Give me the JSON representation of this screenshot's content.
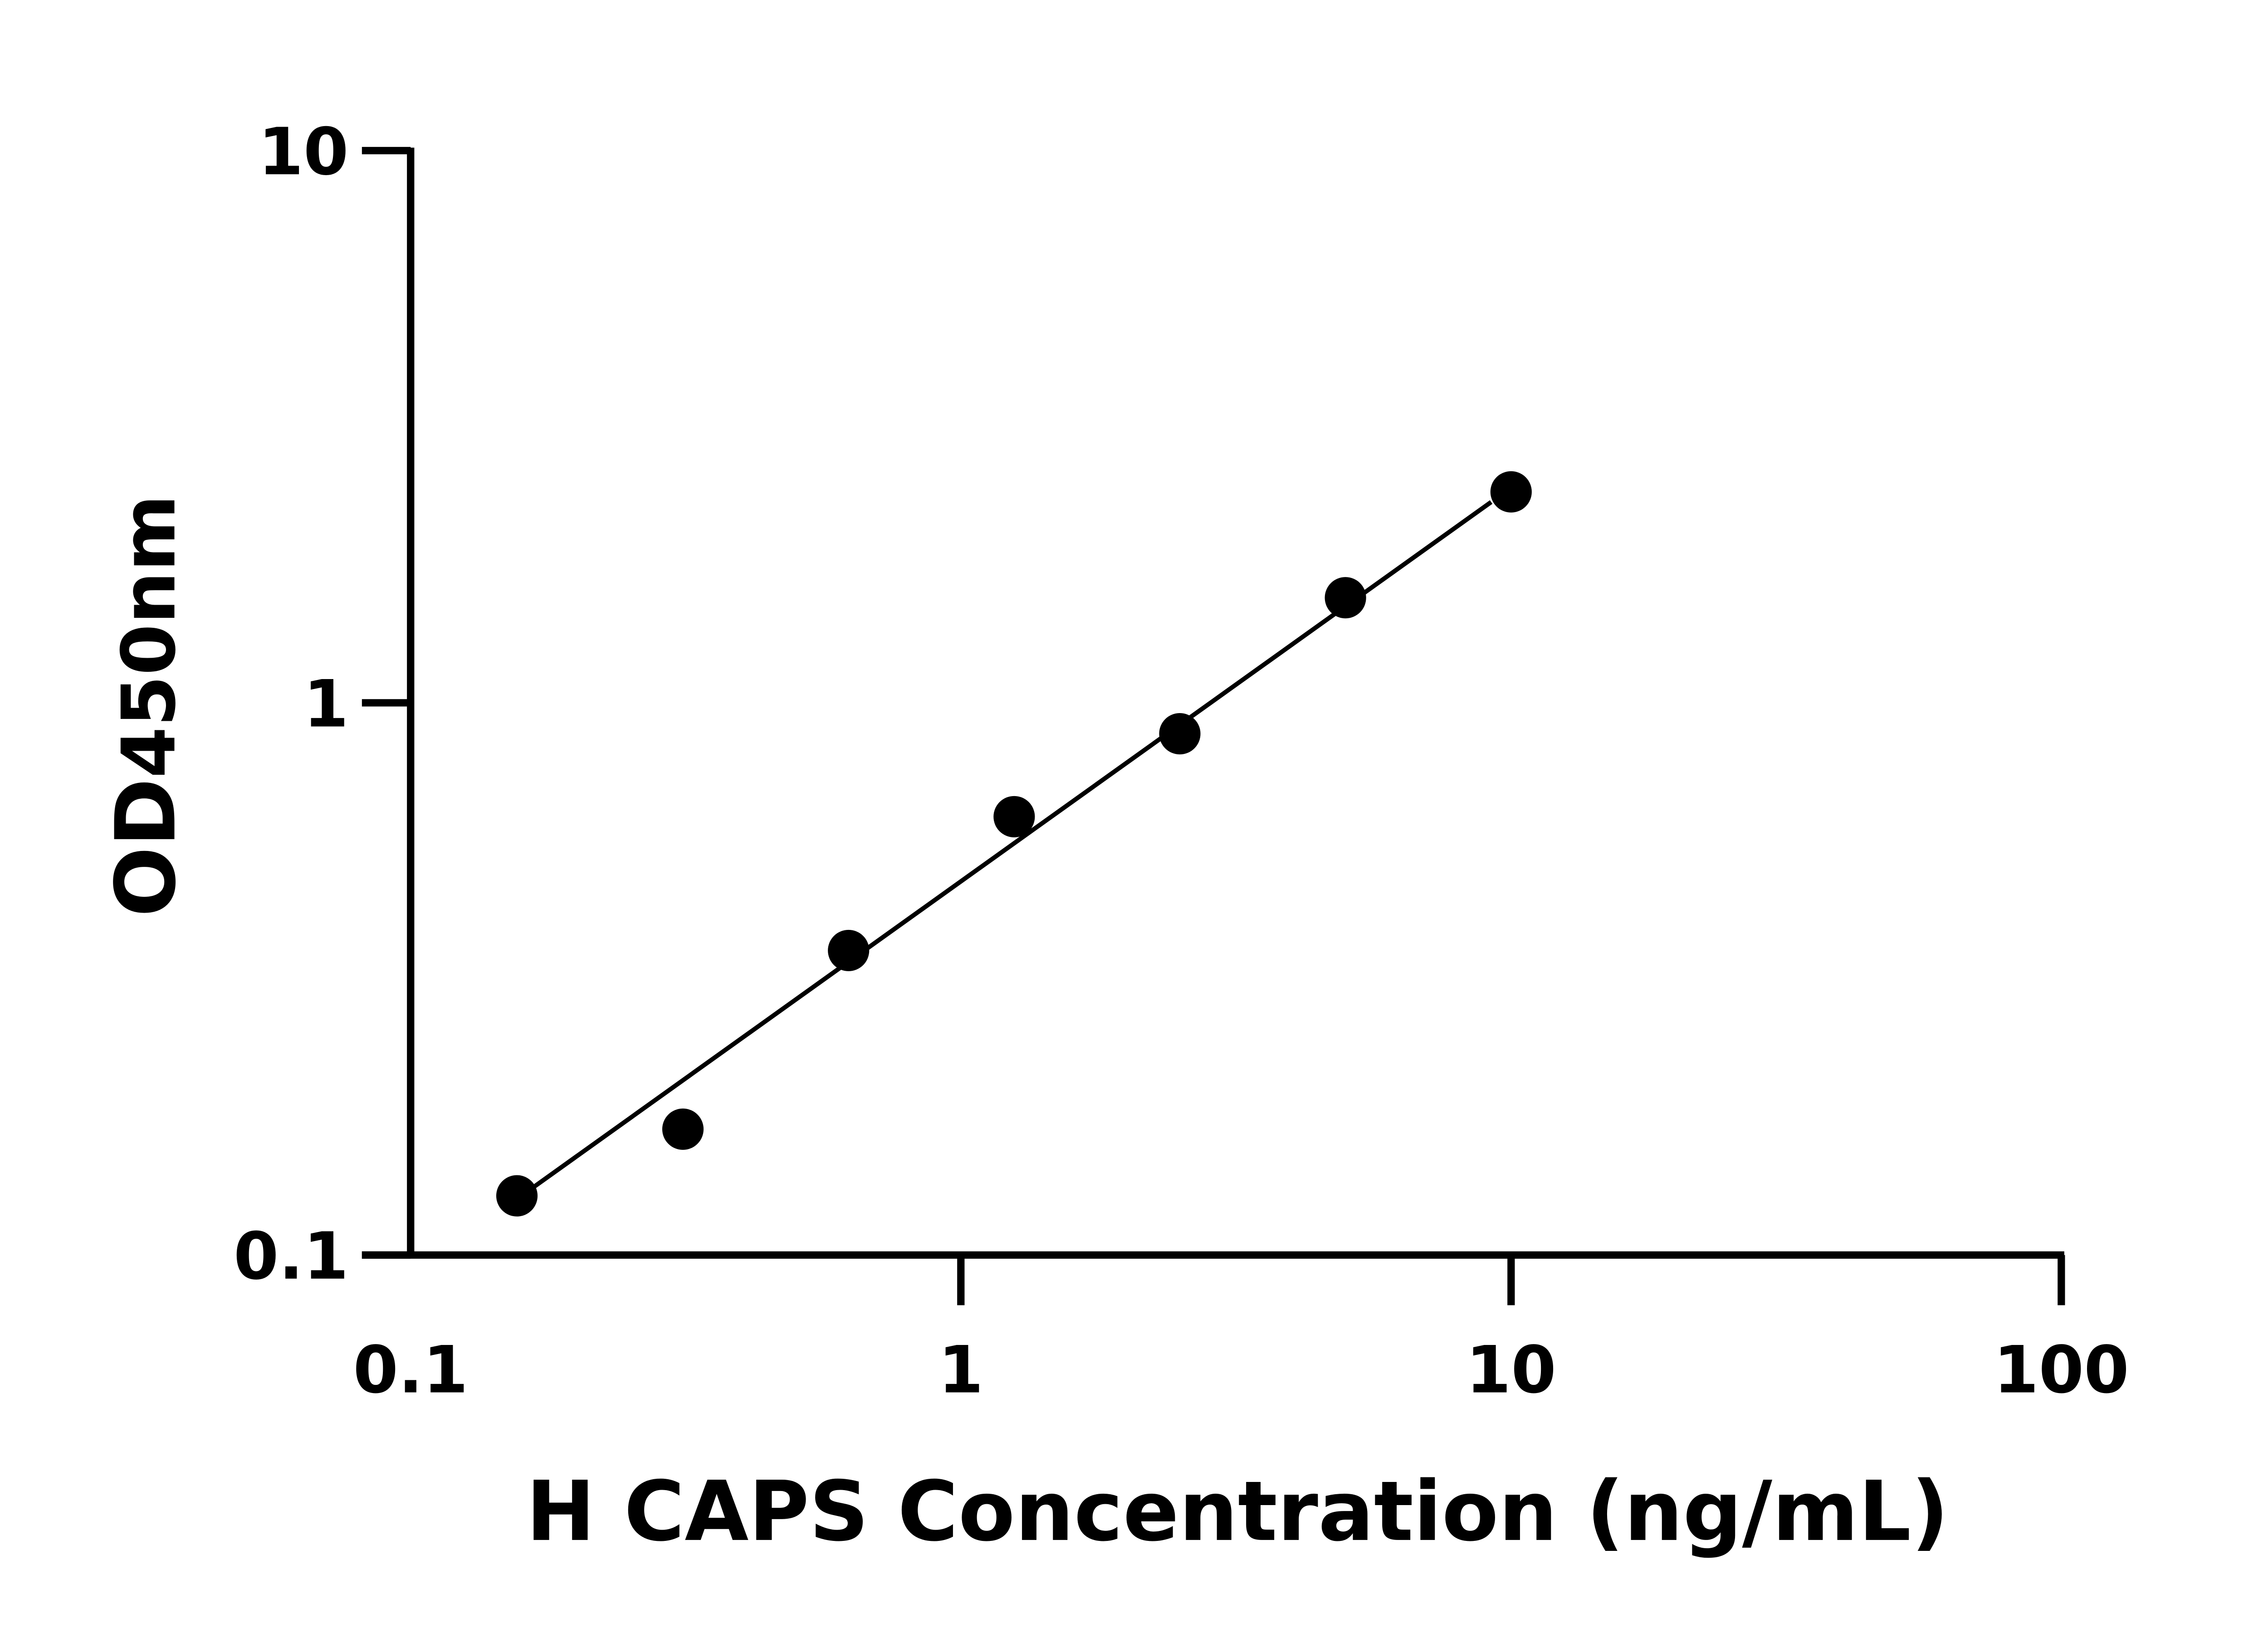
{
  "chart_data": {
    "type": "scatter",
    "xlabel": "H CAPS Concentration (ng/mL)",
    "ylabel": {
      "main": "OD",
      "sub": "450nm"
    },
    "xscale": "log",
    "yscale": "log",
    "xlim": [
      0.1,
      100
    ],
    "ylim": [
      0.1,
      10
    ],
    "xticks": [
      "0.1",
      "1",
      "10",
      "100"
    ],
    "yticks": [
      "0.1",
      "1",
      "10"
    ],
    "grid": false,
    "points": {
      "x": [
        0.156,
        0.3125,
        0.625,
        1.25,
        2.5,
        5,
        10
      ],
      "y": [
        0.128,
        0.169,
        0.356,
        0.622,
        0.879,
        1.55,
        2.41
      ]
    },
    "fit_line": {
      "x": [
        0.166,
        9.2
      ],
      "y": [
        0.132,
        2.31
      ]
    },
    "colors": {
      "points": "#000000",
      "line": "#000000"
    }
  }
}
